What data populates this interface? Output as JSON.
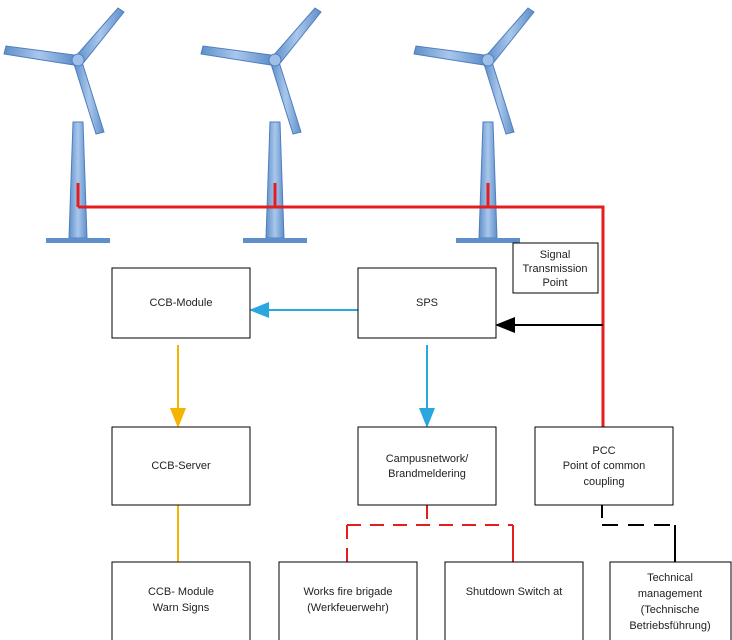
{
  "nodes": [
    {
      "lines": [
        "CCB-Module"
      ]
    },
    {
      "lines": [
        "SPS"
      ]
    },
    {
      "lines": [
        "Signal",
        "Transmission",
        "Point"
      ]
    },
    {
      "lines": [
        "CCB-Server"
      ]
    },
    {
      "lines": [
        "Campusnetwork/",
        "Brandmeldering"
      ]
    },
    {
      "lines": [
        "PCC",
        "Point of common",
        "coupling"
      ]
    },
    {
      "lines": [
        "CCB- Module",
        "Warn Signs"
      ]
    },
    {
      "lines": [
        "Works fire brigade",
        "(Werkfeuerwehr)"
      ]
    },
    {
      "lines": [
        "Shutdown Switch at"
      ]
    },
    {
      "lines": [
        "Technical",
        "management",
        "(Technische",
        "Betriebsführung)"
      ]
    }
  ]
}
